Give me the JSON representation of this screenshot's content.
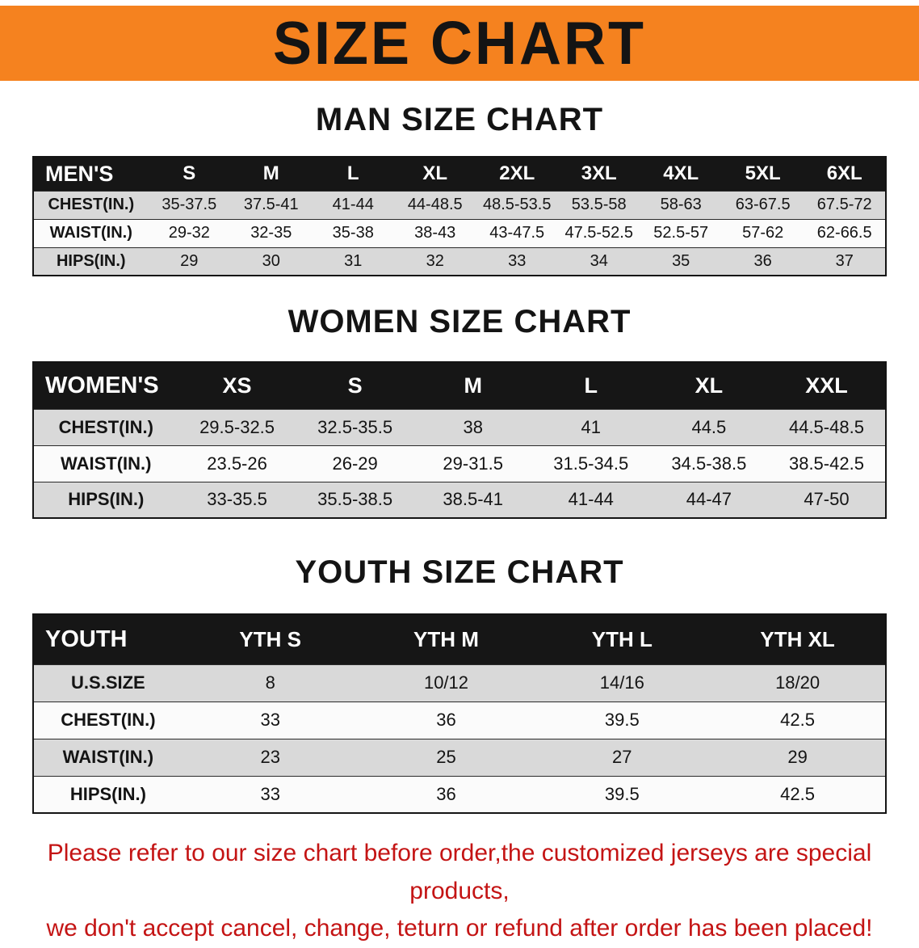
{
  "banner": {
    "title": "SIZE CHART",
    "bg_color": "#f5821f"
  },
  "sections": [
    {
      "heading": "MAN SIZE CHART",
      "table": {
        "header": [
          "MEN'S",
          "S",
          "M",
          "L",
          "XL",
          "2XL",
          "3XL",
          "4XL",
          "5XL",
          "6XL"
        ],
        "rows": [
          [
            "CHEST(IN.)",
            "35-37.5",
            "37.5-41",
            "41-44",
            "44-48.5",
            "48.5-53.5",
            "53.5-58",
            "58-63",
            "63-67.5",
            "67.5-72"
          ],
          [
            "WAIST(IN.)",
            "29-32",
            "32-35",
            "35-38",
            "38-43",
            "43-47.5",
            "47.5-52.5",
            "52.5-57",
            "57-62",
            "62-66.5"
          ],
          [
            "HIPS(IN.)",
            "29",
            "30",
            "31",
            "32",
            "33",
            "34",
            "35",
            "36",
            "37"
          ]
        ]
      }
    },
    {
      "heading": "WOMEN SIZE CHART",
      "table": {
        "header": [
          "WOMEN'S",
          "XS",
          "S",
          "M",
          "L",
          "XL",
          "XXL"
        ],
        "rows": [
          [
            "CHEST(IN.)",
            "29.5-32.5",
            "32.5-35.5",
            "38",
            "41",
            "44.5",
            "44.5-48.5"
          ],
          [
            "WAIST(IN.)",
            "23.5-26",
            "26-29",
            "29-31.5",
            "31.5-34.5",
            "34.5-38.5",
            "38.5-42.5"
          ],
          [
            "HIPS(IN.)",
            "33-35.5",
            "35.5-38.5",
            "38.5-41",
            "41-44",
            "44-47",
            "47-50"
          ]
        ]
      }
    },
    {
      "heading": "YOUTH SIZE CHART",
      "table": {
        "header": [
          "YOUTH",
          "YTH S",
          "YTH M",
          "YTH L",
          "YTH XL"
        ],
        "rows": [
          [
            "U.S.SIZE",
            "8",
            "10/12",
            "14/16",
            "18/20"
          ],
          [
            "CHEST(IN.)",
            "33",
            "36",
            "39.5",
            "42.5"
          ],
          [
            "WAIST(IN.)",
            "23",
            "25",
            "27",
            "29"
          ],
          [
            "HIPS(IN.)",
            "33",
            "36",
            "39.5",
            "42.5"
          ]
        ]
      }
    }
  ],
  "footer": {
    "line1": "Please refer to our size chart before order,the customized jerseys are special products,",
    "line2": "we don't accept cancel, change, teturn or refund after order has been placed!",
    "text_color": "#c41414"
  }
}
